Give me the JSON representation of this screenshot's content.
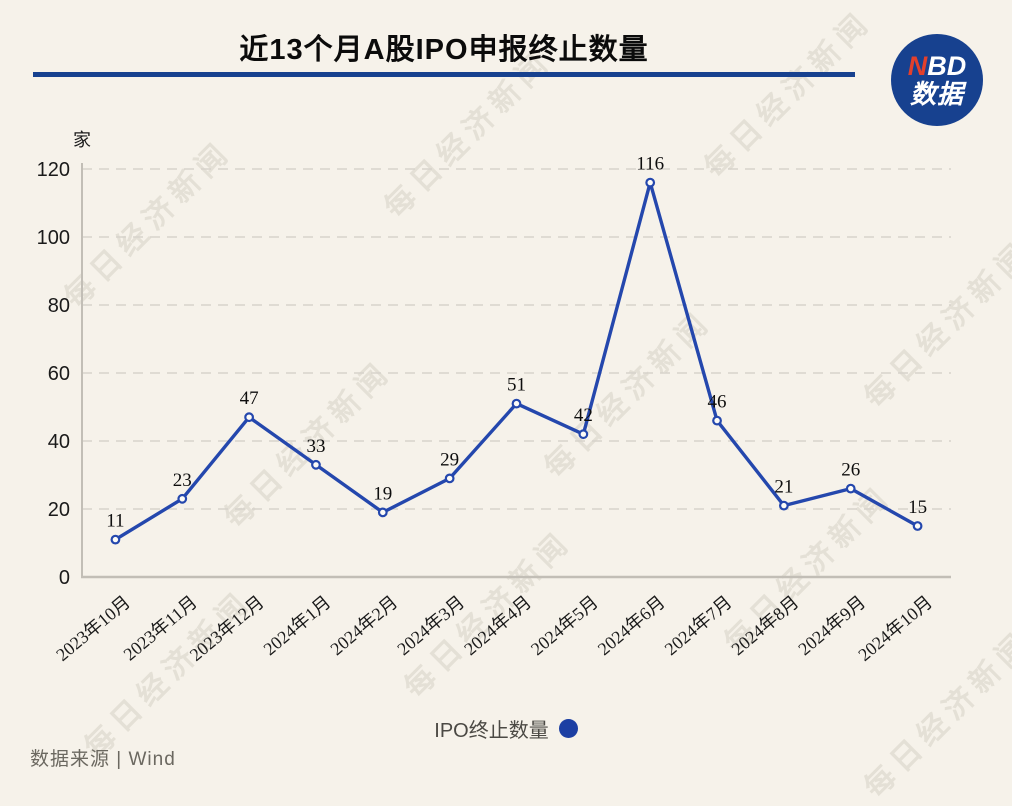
{
  "colors": {
    "background": "#f6f2ea",
    "accent_blue": "#17418f",
    "line_blue": "#2447ad",
    "legend_dot_blue": "#1c3fa3",
    "logo_red": "#e4402c",
    "grid": "#d7d3cb",
    "axis": "#c2beb6",
    "text": "#1a1a1a"
  },
  "header": {
    "title": "近13个月A股IPO申报终止数量",
    "logo": {
      "n": "N",
      "bd": "BD",
      "line2": "数据"
    }
  },
  "chart_data": {
    "type": "line",
    "title": "近13个月A股IPO申报终止数量",
    "unit_label": "家",
    "xlabel": "",
    "ylabel": "家",
    "categories": [
      "2023年10月",
      "2023年11月",
      "2023年12月",
      "2024年1月",
      "2024年2月",
      "2024年3月",
      "2024年4月",
      "2024年5月",
      "2024年6月",
      "2024年7月",
      "2024年8月",
      "2024年9月",
      "2024年10月"
    ],
    "series": [
      {
        "name": "IPO终止数量",
        "values": [
          11,
          23,
          47,
          33,
          19,
          29,
          51,
          42,
          116,
          46,
          21,
          26,
          15
        ],
        "color": "#2447ad"
      }
    ],
    "ylim": [
      0,
      120
    ],
    "y_ticks": [
      0,
      20,
      40,
      60,
      80,
      100,
      120
    ],
    "grid": "horizontal-dashed",
    "point_labels": true,
    "legend_position": "bottom"
  },
  "legend": {
    "label": "IPO终止数量"
  },
  "footer": {
    "source": "数据来源 | Wind"
  },
  "watermark": {
    "text": "每日经济新闻"
  }
}
